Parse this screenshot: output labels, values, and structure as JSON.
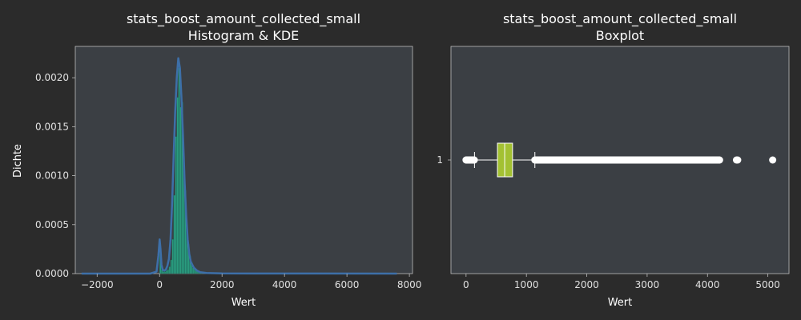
{
  "figure": {
    "background": "#2b2b2b"
  },
  "chart_data": [
    {
      "type": "histogram",
      "title_line1": "stats_boost_amount_collected_small",
      "title_line2": "Histogram & KDE",
      "xlabel": "Wert",
      "ylabel": "Dichte",
      "xlim": [
        -2700,
        8100
      ],
      "ylim": [
        0,
        0.00232
      ],
      "xticks": [
        "−2000",
        "0",
        "2000",
        "4000",
        "6000",
        "8000"
      ],
      "xtick_values": [
        -2000,
        0,
        2000,
        4000,
        6000,
        8000
      ],
      "yticks": [
        "0.0000",
        "0.0005",
        "0.0010",
        "0.0015",
        "0.0020"
      ],
      "ytick_values": [
        0,
        0.0005,
        0.001,
        0.0015,
        0.002
      ],
      "plot_background": "#3b3f44",
      "histogram_color": "#2a9d7f",
      "kde_color": "#3d6fa8",
      "histogram": {
        "bin_edges": [
          0,
          50,
          100,
          150,
          200,
          250,
          300,
          350,
          400,
          450,
          500,
          550,
          600,
          650,
          700,
          750,
          800,
          850,
          900,
          950,
          1000,
          1050,
          1100,
          1150,
          1200,
          1250,
          1300,
          1350,
          1400,
          1450,
          1500
        ],
        "density": [
          0.0002,
          4e-05,
          2e-05,
          2e-05,
          3e-05,
          4e-05,
          7e-05,
          0.00014,
          0.00035,
          0.0008,
          0.0014,
          0.0018,
          0.0021,
          0.0017,
          0.00175,
          0.0012,
          0.00085,
          0.0005,
          0.0003,
          0.00018,
          0.00012,
          6e-05,
          5e-05,
          3e-05,
          2e-05,
          1e-05,
          1e-05,
          5e-06,
          4e-06,
          3e-06
        ]
      },
      "kde": {
        "x": [
          -2500,
          -1000,
          -300,
          -100,
          -40,
          0,
          30,
          60,
          100,
          150,
          200,
          250,
          300,
          350,
          400,
          450,
          500,
          550,
          600,
          650,
          700,
          750,
          800,
          850,
          900,
          950,
          1000,
          1100,
          1200,
          1300,
          1500,
          2000,
          3000,
          5000,
          7600
        ],
        "y": [
          0,
          0,
          0,
          2e-05,
          0.00018,
          0.00035,
          0.00025,
          9e-05,
          4e-05,
          3e-05,
          4e-05,
          8e-05,
          0.00015,
          0.00035,
          0.0007,
          0.0012,
          0.00165,
          0.002,
          0.0022,
          0.0021,
          0.0018,
          0.0014,
          0.00095,
          0.0006,
          0.00035,
          0.0002,
          0.00012,
          6e-05,
          3e-05,
          1.5e-05,
          6e-06,
          2e-06,
          1e-06,
          5e-07,
          0
        ]
      }
    },
    {
      "type": "boxplot",
      "title_line1": "stats_boost_amount_collected_small",
      "title_line2": "Boxplot",
      "xlabel": "Wert",
      "xlim": [
        -250,
        5350
      ],
      "xticks": [
        "0",
        "1000",
        "2000",
        "3000",
        "4000",
        "5000"
      ],
      "xtick_values": [
        0,
        1000,
        2000,
        3000,
        4000,
        5000
      ],
      "yticks": [
        "1"
      ],
      "plot_background": "#3b3f44",
      "box_color": "#a3c132",
      "box": {
        "whisker_low": 140,
        "q1": 520,
        "median": 640,
        "q3": 770,
        "whisker_high": 1140
      },
      "outliers_low_range": [
        0,
        140
      ],
      "outliers_high_range": [
        1140,
        4210
      ],
      "outliers_extra": [
        4480,
        4500,
        5080
      ]
    }
  ]
}
